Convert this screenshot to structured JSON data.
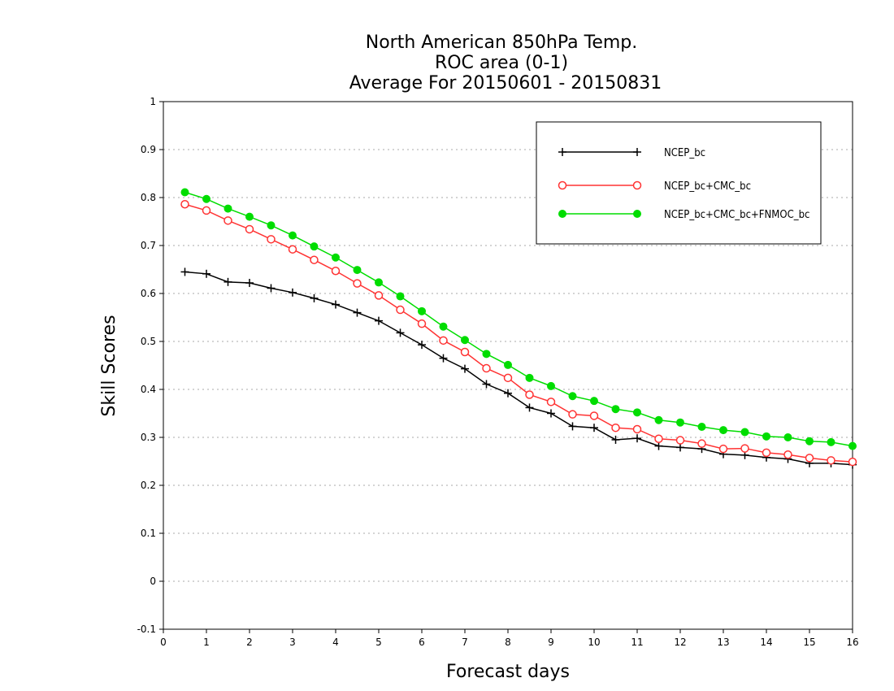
{
  "chart_data": {
    "type": "line",
    "title": [
      "North American 850hPa Temp.",
      "ROC area (0-1)",
      "Average For 20150601 - 20150831"
    ],
    "xlabel": "Forecast days",
    "ylabel": "Skill Scores",
    "xlim": [
      0,
      16
    ],
    "ylim": [
      -0.1,
      1
    ],
    "x_ticks": [
      "0",
      "1",
      "2",
      "3",
      "4",
      "5",
      "6",
      "7",
      "8",
      "9",
      "10",
      "11",
      "12",
      "13",
      "14",
      "15",
      "16"
    ],
    "y_ticks": [
      "-0.1",
      "0",
      "0.1",
      "0.2",
      "0.3",
      "0.4",
      "0.5",
      "0.6",
      "0.7",
      "0.8",
      "0.9",
      "1"
    ],
    "grid": "horizontal dotted",
    "legend_position": "top-right",
    "x": [
      0.5,
      1,
      1.5,
      2,
      2.5,
      3,
      3.5,
      4,
      4.5,
      5,
      5.5,
      6,
      6.5,
      7,
      7.5,
      8,
      8.5,
      9,
      9.5,
      10,
      10.5,
      11,
      11.5,
      12,
      12.5,
      13,
      13.5,
      14,
      14.5,
      15,
      15.5,
      16
    ],
    "series": [
      {
        "name": "NCEP_bc",
        "color": "#000000",
        "marker": "plus",
        "values": [
          0.645,
          0.641,
          0.624,
          0.622,
          0.611,
          0.602,
          0.59,
          0.577,
          0.56,
          0.543,
          0.518,
          0.493,
          0.465,
          0.443,
          0.411,
          0.392,
          0.362,
          0.35,
          0.323,
          0.32,
          0.295,
          0.298,
          0.282,
          0.279,
          0.276,
          0.265,
          0.263,
          0.258,
          0.255,
          0.246,
          0.246,
          0.243
        ]
      },
      {
        "name": "NCEP_bc+CMC_bc",
        "color": "#ff3333",
        "marker": "open-circle",
        "values": [
          0.786,
          0.773,
          0.752,
          0.734,
          0.713,
          0.692,
          0.67,
          0.647,
          0.621,
          0.596,
          0.566,
          0.537,
          0.502,
          0.478,
          0.444,
          0.424,
          0.389,
          0.374,
          0.348,
          0.345,
          0.32,
          0.317,
          0.297,
          0.294,
          0.287,
          0.276,
          0.277,
          0.268,
          0.264,
          0.257,
          0.252,
          0.249
        ]
      },
      {
        "name": "NCEP_bc+CMC_bc+FNMOC_bc",
        "color": "#00dd00",
        "marker": "filled-circle",
        "values": [
          0.811,
          0.797,
          0.777,
          0.76,
          0.742,
          0.721,
          0.698,
          0.675,
          0.649,
          0.623,
          0.594,
          0.563,
          0.531,
          0.503,
          0.474,
          0.451,
          0.424,
          0.407,
          0.386,
          0.376,
          0.359,
          0.352,
          0.336,
          0.331,
          0.322,
          0.315,
          0.311,
          0.302,
          0.3,
          0.292,
          0.29,
          0.282
        ]
      }
    ]
  }
}
